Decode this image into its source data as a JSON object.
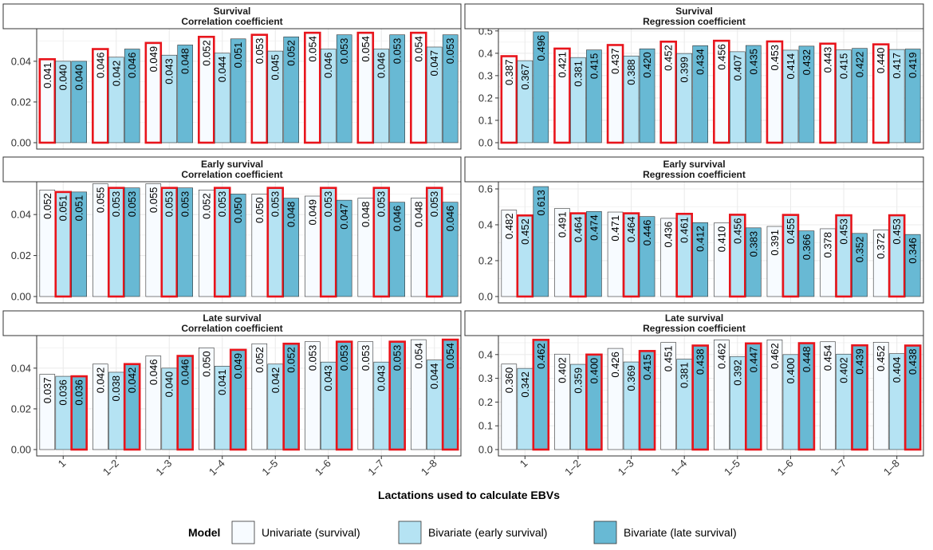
{
  "chart_data": {
    "type": "bar",
    "xlabel": "Lactations used to calculate EBVs",
    "categories": [
      "1",
      "1–2",
      "1–3",
      "1–4",
      "1–5",
      "1–6",
      "1–7",
      "1–8"
    ],
    "legend": {
      "title": "Model",
      "placement": "bottom",
      "entries": [
        {
          "name": "Univariate (survival)",
          "color": "#f7fbff"
        },
        {
          "name": "Bivariate (early survival)",
          "color": "#b5e3f3"
        },
        {
          "name": "Bivariate (late survival)",
          "color": "#68b9d4"
        }
      ]
    },
    "highlight_color": "#e8141b",
    "panels": [
      {
        "trait": "Survival",
        "measure": "Correlation coefficient",
        "ylim": [
          0,
          0.056
        ],
        "yticks": [
          0.0,
          0.02,
          0.04
        ],
        "tick_decimals": 2,
        "series": [
          {
            "name": "Univariate (survival)",
            "values": [
              0.041,
              0.046,
              0.049,
              0.052,
              0.053,
              0.054,
              0.054,
              0.054
            ]
          },
          {
            "name": "Bivariate (early survival)",
            "values": [
              0.04,
              0.042,
              0.043,
              0.044,
              0.045,
              0.046,
              0.046,
              0.047
            ]
          },
          {
            "name": "Bivariate (late survival)",
            "values": [
              0.04,
              0.046,
              0.048,
              0.051,
              0.052,
              0.053,
              0.053,
              0.053
            ]
          }
        ],
        "highlight_series": 0
      },
      {
        "trait": "Survival",
        "measure": "Regression coefficient",
        "ylim": [
          0,
          0.51
        ],
        "yticks": [
          0.0,
          0.1,
          0.2,
          0.3,
          0.4,
          0.5
        ],
        "tick_decimals": 1,
        "series": [
          {
            "name": "Univariate (survival)",
            "values": [
              0.387,
              0.421,
              0.437,
              0.452,
              0.456,
              0.453,
              0.443,
              0.44
            ]
          },
          {
            "name": "Bivariate (early survival)",
            "values": [
              0.367,
              0.381,
              0.388,
              0.399,
              0.407,
              0.414,
              0.415,
              0.417
            ]
          },
          {
            "name": "Bivariate (late survival)",
            "values": [
              0.496,
              0.415,
              0.42,
              0.434,
              0.435,
              0.432,
              0.422,
              0.419
            ]
          }
        ],
        "highlight_series": 0
      },
      {
        "trait": "Early survival",
        "measure": "Correlation coefficient",
        "ylim": [
          0,
          0.056
        ],
        "yticks": [
          0.0,
          0.02,
          0.04
        ],
        "tick_decimals": 2,
        "series": [
          {
            "name": "Univariate (survival)",
            "values": [
              0.052,
              0.055,
              0.055,
              0.052,
              0.05,
              0.049,
              0.048,
              0.048
            ]
          },
          {
            "name": "Bivariate (early survival)",
            "values": [
              0.051,
              0.053,
              0.053,
              0.053,
              0.053,
              0.053,
              0.053,
              0.053
            ]
          },
          {
            "name": "Bivariate (late survival)",
            "values": [
              0.051,
              0.053,
              0.053,
              0.05,
              0.048,
              0.047,
              0.046,
              0.046
            ]
          }
        ],
        "highlight_series": 1
      },
      {
        "trait": "Early survival",
        "measure": "Regression coefficient",
        "ylim": [
          0,
          0.64
        ],
        "yticks": [
          0.0,
          0.2,
          0.4,
          0.6
        ],
        "tick_decimals": 1,
        "series": [
          {
            "name": "Univariate (survival)",
            "values": [
              0.482,
              0.491,
              0.471,
              0.436,
              0.41,
              0.391,
              0.378,
              0.372
            ]
          },
          {
            "name": "Bivariate (early survival)",
            "values": [
              0.452,
              0.464,
              0.464,
              0.461,
              0.456,
              0.455,
              0.453,
              0.453
            ]
          },
          {
            "name": "Bivariate (late survival)",
            "values": [
              0.613,
              0.474,
              0.446,
              0.412,
              0.383,
              0.366,
              0.352,
              0.346
            ]
          }
        ],
        "highlight_series": 1
      },
      {
        "trait": "Late survival",
        "measure": "Correlation coefficient",
        "ylim": [
          0,
          0.056
        ],
        "yticks": [
          0.0,
          0.02,
          0.04
        ],
        "tick_decimals": 2,
        "series": [
          {
            "name": "Univariate (survival)",
            "values": [
              0.037,
              0.042,
              0.046,
              0.05,
              0.052,
              0.053,
              0.053,
              0.054
            ]
          },
          {
            "name": "Bivariate (early survival)",
            "values": [
              0.036,
              0.038,
              0.04,
              0.041,
              0.042,
              0.043,
              0.043,
              0.044
            ]
          },
          {
            "name": "Bivariate (late survival)",
            "values": [
              0.036,
              0.042,
              0.046,
              0.049,
              0.052,
              0.053,
              0.053,
              0.054
            ]
          }
        ],
        "highlight_series": 2
      },
      {
        "trait": "Late survival",
        "measure": "Regression coefficient",
        "ylim": [
          0,
          0.48
        ],
        "yticks": [
          0.0,
          0.1,
          0.2,
          0.3,
          0.4
        ],
        "tick_decimals": 1,
        "series": [
          {
            "name": "Univariate (survival)",
            "values": [
              0.36,
              0.402,
              0.426,
              0.451,
              0.462,
              0.462,
              0.454,
              0.452
            ]
          },
          {
            "name": "Bivariate (early survival)",
            "values": [
              0.342,
              0.359,
              0.369,
              0.381,
              0.392,
              0.4,
              0.402,
              0.404
            ]
          },
          {
            "name": "Bivariate (late survival)",
            "values": [
              0.462,
              0.4,
              0.415,
              0.438,
              0.447,
              0.448,
              0.439,
              0.438
            ]
          }
        ],
        "highlight_series": 2
      }
    ]
  }
}
